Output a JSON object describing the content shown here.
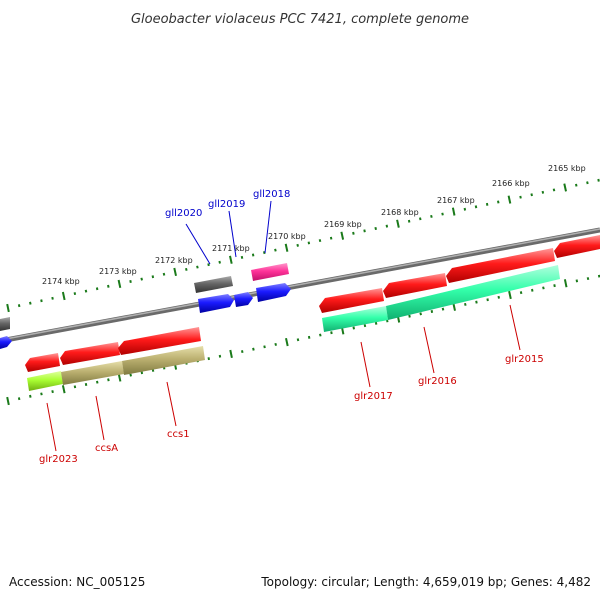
{
  "title": "Gloeobacter violaceus PCC 7421, complete genome",
  "footer": {
    "accession": "Accession: NC_005125",
    "topology": "Topology: circular; Length: 4,659,019 bp; Genes: 4,482"
  },
  "scale_labels": [
    "2174 kbp",
    "2173 kbp",
    "2172 kbp",
    "2171 kbp",
    "2170 kbp",
    "2169 kbp",
    "2168 kbp",
    "2167 kbp",
    "2166 kbp",
    "2165 kbp"
  ],
  "genes_forward": [
    {
      "name": "gll2020",
      "color": "#0000cc"
    },
    {
      "name": "gll2019",
      "color": "#0000cc"
    },
    {
      "name": "gll2018",
      "color": "#0000cc"
    }
  ],
  "genes_reverse": [
    {
      "name": "glr2023",
      "color": "#cc0000"
    },
    {
      "name": "ccsA",
      "color": "#cc0000"
    },
    {
      "name": "ccs1",
      "color": "#cc0000"
    },
    {
      "name": "glr2017",
      "color": "#cc0000"
    },
    {
      "name": "glr2016",
      "color": "#cc0000"
    },
    {
      "name": "glr2015",
      "color": "#cc0000"
    }
  ],
  "colors": {
    "backbone": "#808080",
    "tick": "#1a7a1a",
    "gene_red": "#ff1a1a",
    "gene_blue": "#1a1aff",
    "gene_gray": "#666666",
    "gene_pink": "#ff3399",
    "gene_green": "#33ffaa",
    "gene_lime": "#aaff33",
    "gene_khaki": "#bbb070"
  }
}
